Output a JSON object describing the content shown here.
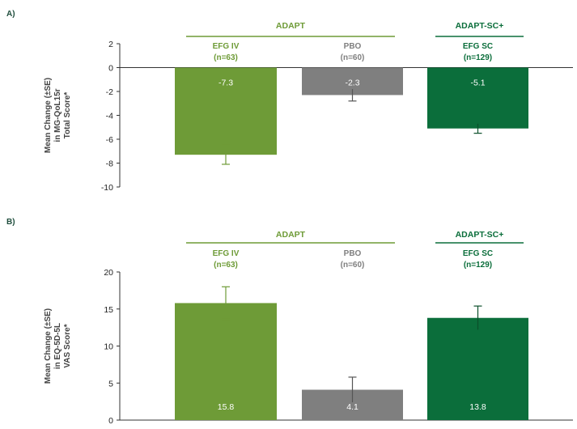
{
  "colors": {
    "efg_iv": "#6e9b37",
    "pbo": "#7f7f7f",
    "efg_sc": "#0b6e3b",
    "axis": "#333333"
  },
  "chart_data": [
    {
      "type": "bar",
      "panel_label": "A)",
      "ylabel": [
        "Mean Change (±SE)",
        "in MG-QoL15r",
        "Total Score*"
      ],
      "ylim": [
        -10,
        2
      ],
      "yticks": [
        2,
        0,
        -2,
        -4,
        -6,
        -8,
        -10
      ],
      "groups": [
        {
          "label": "ADAPT",
          "series_indices": [
            0,
            1
          ]
        },
        {
          "label": "ADAPT-SC+",
          "series_indices": [
            2
          ]
        }
      ],
      "series": [
        {
          "name": "EFG IV",
          "n": "(n=63)",
          "value": -7.3,
          "label": "-7.3",
          "se": 0.8,
          "color": "#6e9b37",
          "name_color": "#6e9b37"
        },
        {
          "name": "PBO",
          "n": "(n=60)",
          "value": -2.3,
          "label": "-2.3",
          "se": 0.5,
          "color": "#7f7f7f",
          "name_color": "#7f7f7f"
        },
        {
          "name": "EFG SC",
          "n": "(n=129)",
          "value": -5.1,
          "label": "-5.1",
          "se": 0.4,
          "color": "#0b6e3b",
          "name_color": "#0b6e3b"
        }
      ]
    },
    {
      "type": "bar",
      "panel_label": "B)",
      "ylabel": [
        "Mean Change (±SE)",
        "in EQ-5D-5L",
        "VAS Score*"
      ],
      "ylim": [
        0,
        20
      ],
      "yticks": [
        20,
        15,
        10,
        5,
        0
      ],
      "groups": [
        {
          "label": "ADAPT",
          "series_indices": [
            0,
            1
          ]
        },
        {
          "label": "ADAPT-SC+",
          "series_indices": [
            2
          ]
        }
      ],
      "series": [
        {
          "name": "EFG IV",
          "n": "(n=63)",
          "value": 15.8,
          "label": "15.8",
          "se": 2.2,
          "color": "#6e9b37",
          "name_color": "#6e9b37"
        },
        {
          "name": "PBO",
          "n": "(n=60)",
          "value": 4.1,
          "label": "4.1",
          "se": 1.7,
          "color": "#7f7f7f",
          "name_color": "#7f7f7f"
        },
        {
          "name": "EFG SC",
          "n": "(n=129)",
          "value": 13.8,
          "label": "13.8",
          "se": 1.6,
          "color": "#0b6e3b",
          "name_color": "#0b6e3b"
        }
      ]
    }
  ]
}
